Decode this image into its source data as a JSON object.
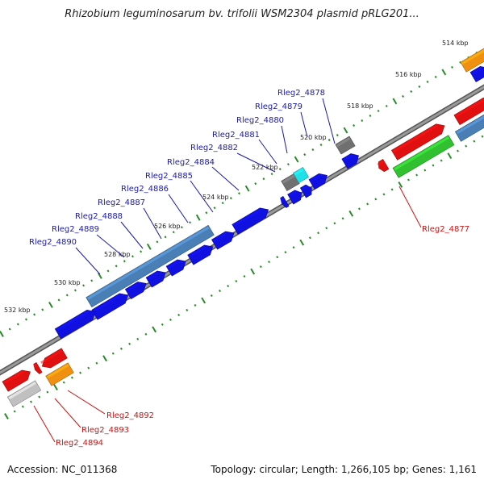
{
  "title": "Rhizobium leguminosarum bv. trifolii WSM2304 plasmid pRLG201...",
  "footer": {
    "accession": "Accession: NC_011368",
    "topology": "Topology: circular; Length: 1,266,105 bp; Genes: 1,161"
  },
  "colors": {
    "blue": "#1010e0",
    "red": "#e01010",
    "green": "#30c030",
    "steelblue": "#4a7fb5",
    "gray": "#707070",
    "cyan": "#20e0e8",
    "orange": "#f09010",
    "lightgray": "#c0c0c0",
    "backbone": "#808080",
    "ticks": "#2a8a2a"
  },
  "kbp_labels": [
    "514 kbp",
    "516 kbp",
    "518 kbp",
    "520 kbp",
    "522 kbp",
    "524 kbp",
    "526 kbp",
    "528 kbp",
    "530 kbp",
    "532 kbp"
  ],
  "gene_labels": {
    "blue": [
      "Rleg2_4878",
      "Rleg2_4879",
      "Rleg2_4880",
      "Rleg2_4881",
      "Rleg2_4882",
      "Rleg2_4884",
      "Rleg2_4885",
      "Rleg2_4886",
      "Rleg2_4887",
      "Rleg2_4888",
      "Rleg2_4889",
      "Rleg2_4890"
    ],
    "red": [
      "Rleg2_4877",
      "Rleg2_4892",
      "Rleg2_4893",
      "Rleg2_4894"
    ]
  }
}
